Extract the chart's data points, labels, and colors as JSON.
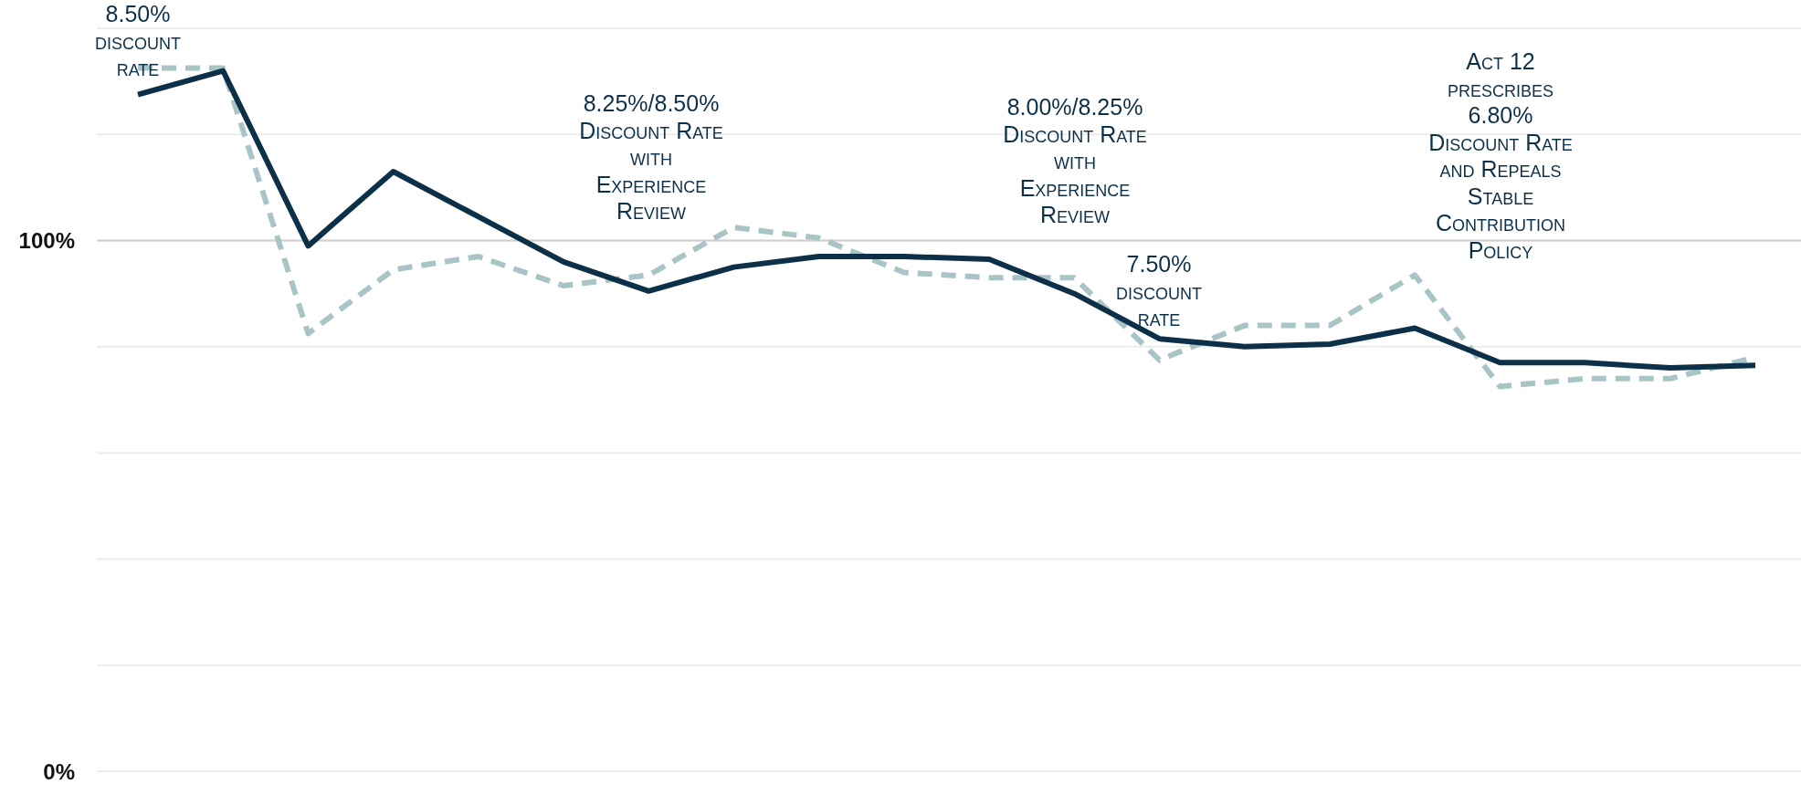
{
  "chart_data": {
    "type": "line",
    "categories": [
      null,
      null,
      null,
      null,
      null,
      null,
      null,
      null,
      null,
      null,
      null,
      null,
      null,
      null,
      null,
      null,
      null,
      null,
      null,
      null
    ],
    "series": [
      {
        "color": "#0d3049",
        "line_style": "solid",
        "values": [
          127.5,
          132,
          99,
          113,
          104.5,
          96,
          90.5,
          95,
          97,
          97,
          96.5,
          90,
          81.5,
          80,
          80.5,
          83.5,
          77,
          77,
          76,
          76.5
        ]
      },
      {
        "color": "#a9c4c6",
        "line_style": "dashed",
        "values": [
          132.5,
          132.5,
          82.5,
          94.5,
          97,
          91.5,
          93.5,
          102.5,
          100.5,
          94,
          93,
          93,
          77.5,
          84,
          84,
          93.5,
          72.5,
          74,
          74,
          78
        ]
      }
    ],
    "ylim": [
      0,
      140
    ],
    "ref_lines": [
      {
        "axis": "y",
        "value": 100,
        "color": "#d0d0d0"
      }
    ],
    "yticks": [
      {
        "value": 0,
        "label": "0%"
      },
      {
        "value": 20,
        "label": null
      },
      {
        "value": 40,
        "label": null
      },
      {
        "value": 60,
        "label": null
      },
      {
        "value": 80,
        "label": null
      },
      {
        "value": 100,
        "label": "100%"
      },
      {
        "value": 120,
        "label": null
      },
      {
        "value": 140,
        "label": null
      }
    ],
    "grid": "y",
    "marker": "none",
    "annotations": [
      "8.50%\ndiscount\nrate",
      "8.25%/8.50%\nDiscount Rate\nwith\nExperience\nReview",
      "8.00%/8.25%\nDiscount Rate\nwith\nExperience\nReview",
      "7.50%\ndiscount\nrate",
      "Act 12\nprescribes\n6.80%\nDiscount Rate\nand Repeals\nStable\nContribution\nPolicy"
    ]
  }
}
